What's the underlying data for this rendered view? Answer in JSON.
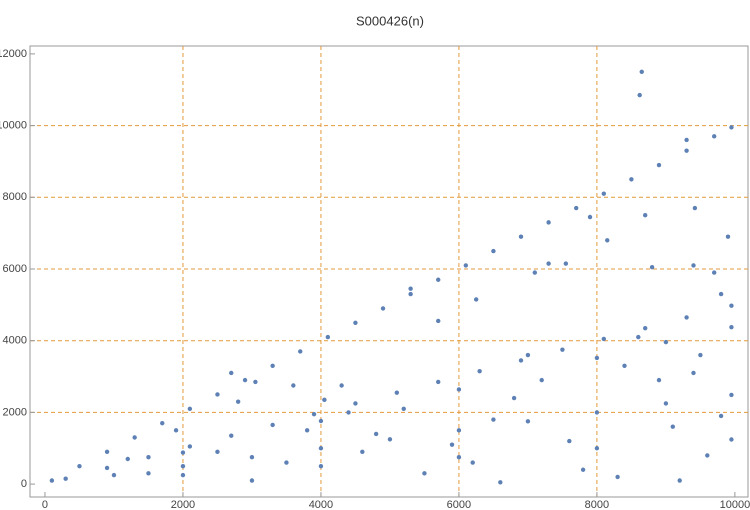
{
  "chart_data": {
    "type": "scatter",
    "title": "S000426(n)",
    "xlim": [
      -217,
      10190
    ],
    "ylim": [
      -360,
      12220
    ],
    "xticks": [
      0,
      2000,
      4000,
      6000,
      8000,
      10000
    ],
    "yticks": [
      0,
      2000,
      4000,
      6000,
      8000,
      10000,
      12000
    ],
    "xgrid": [
      2000,
      4000,
      6000,
      8000
    ],
    "ygrid": [
      2000,
      4000,
      6000,
      8000,
      10000
    ],
    "grid_color": "#e39a3c",
    "series": [
      {
        "color": "#5e81b5",
        "x": [
          100,
          500,
          900,
          1300,
          1700,
          2100,
          2500,
          2900,
          3300,
          3700,
          4100,
          4500,
          4900,
          5300,
          5700,
          6100,
          6500,
          6900,
          7300,
          7700,
          8100,
          8500,
          8900,
          9300,
          9700,
          9950,
          300,
          900,
          1500,
          2100,
          2700,
          3300,
          3900,
          4500,
          5100,
          5700,
          6300,
          6900,
          7500,
          8100,
          8700,
          9300,
          9950,
          2000,
          4000,
          6000,
          8000,
          9000,
          9950,
          1000,
          2000,
          3000,
          4000,
          5000,
          6000,
          7000,
          8000,
          9000,
          9950,
          2000,
          4000,
          6000,
          8000,
          9950,
          8650,
          8620,
          9300,
          9420,
          8700,
          7900,
          8150,
          9900,
          7550,
          7300,
          7100,
          5300,
          6250,
          5700,
          2700,
          3050,
          2800,
          3600,
          4300,
          4050,
          1900,
          8800,
          9400,
          9700,
          9800,
          6500,
          7200,
          8400,
          9100,
          9600,
          5500,
          4800,
          3500,
          2500,
          7800,
          8900,
          9500,
          6800,
          5900,
          4400,
          3800,
          7600,
          8300,
          9200,
          6200,
          1500,
          1200,
          9800,
          8600,
          7000,
          5200,
          4600,
          3000,
          6600,
          9400
        ],
        "values": [
          100,
          500,
          900,
          1300,
          1700,
          2100,
          2500,
          2900,
          3300,
          3700,
          4100,
          4500,
          4900,
          5300,
          5700,
          6100,
          6500,
          6900,
          7300,
          7700,
          8100,
          8500,
          8900,
          9300,
          9700,
          9950,
          150,
          450,
          750,
          1050,
          1350,
          1650,
          1950,
          2250,
          2550,
          2850,
          3150,
          3450,
          3750,
          4050,
          4350,
          4650,
          4975,
          880,
          1760,
          2640,
          3520,
          3960,
          4378,
          250,
          500,
          750,
          1000,
          1250,
          1500,
          1750,
          2000,
          2250,
          2488,
          250,
          500,
          750,
          1000,
          1244,
          11500,
          10850,
          9600,
          7700,
          7500,
          7450,
          6800,
          6900,
          6150,
          6150,
          5900,
          5450,
          5150,
          4550,
          3100,
          2850,
          2300,
          2750,
          2750,
          2350,
          1500,
          6050,
          6100,
          5900,
          5300,
          1800,
          2900,
          3300,
          1600,
          800,
          300,
          1400,
          600,
          900,
          400,
          2900,
          3600,
          2400,
          1100,
          2000,
          1500,
          1200,
          200,
          100,
          600,
          300,
          700,
          1900,
          4100,
          3600,
          2100,
          900,
          100,
          50,
          3100
        ]
      }
    ]
  }
}
